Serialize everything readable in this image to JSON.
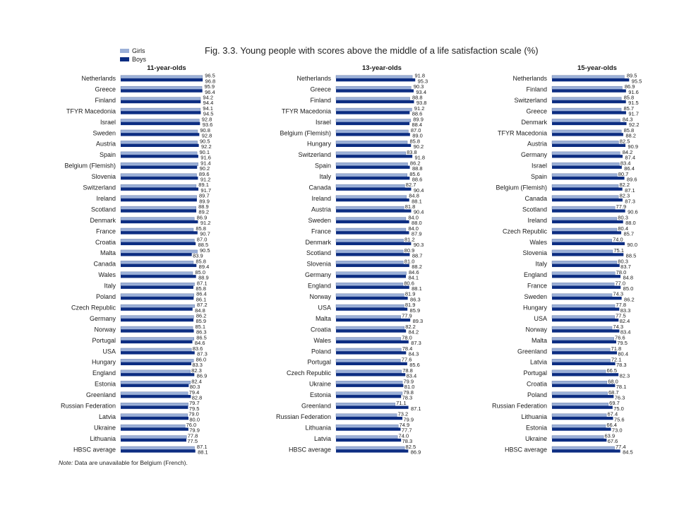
{
  "title": "Fig. 3.3. Young people with scores above the middle of a life satisfaction scale (%)",
  "legend": {
    "girls_label": "Girls",
    "boys_label": "Boys"
  },
  "note": {
    "prefix": "Note:",
    "text": "Data are unavailable for Belgium (French)."
  },
  "colors": {
    "girls": "#9bb0d8",
    "boys": "#0c2d82",
    "bar_outline": "#5a6e9c"
  },
  "chart_data": [
    {
      "type": "bar",
      "orientation": "horizontal",
      "title": "11-year-olds",
      "categories": [
        "Netherlands",
        "Greece",
        "Finland",
        "TFYR Macedonia",
        "Israel",
        "Sweden",
        "Austria",
        "Spain",
        "Belgium (Flemish)",
        "Slovenia",
        "Switzerland",
        "Ireland",
        "Scotland",
        "Denmark",
        "France",
        "Croatia",
        "Malta",
        "Canada",
        "Wales",
        "Italy",
        "Poland",
        "Czech Republic",
        "Germany",
        "Norway",
        "Portugal",
        "USA",
        "Hungary",
        "England",
        "Estonia",
        "Greenland",
        "Russian Federation",
        "Latvia",
        "Ukraine",
        "Lithuania",
        "HBSC average"
      ],
      "series": [
        {
          "name": "Girls",
          "values": [
            96.5,
            95.9,
            94.2,
            94.1,
            92.8,
            90.8,
            90.5,
            90.1,
            91.4,
            89.6,
            89.1,
            89.7,
            88.9,
            86.9,
            85.8,
            87.0,
            90.5,
            85.8,
            85.0,
            87.1,
            86.4,
            87.2,
            86.2,
            85.1,
            86.5,
            83.6,
            86.0,
            82.3,
            82.4,
            79.4,
            79.7,
            79.0,
            76.0,
            77.8,
            87.1
          ]
        },
        {
          "name": "Boys",
          "values": [
            96.8,
            96.4,
            94.4,
            94.5,
            93.6,
            92.8,
            92.2,
            91.6,
            90.2,
            91.2,
            91.7,
            89.9,
            89.2,
            91.2,
            90.7,
            88.5,
            83.9,
            89.4,
            88.9,
            85.8,
            86.1,
            84.8,
            85.9,
            86.3,
            84.6,
            87.3,
            83.3,
            86.9,
            80.3,
            82.8,
            79.5,
            80.0,
            79.9,
            77.5,
            88.1
          ]
        }
      ],
      "xlim": [
        0,
        100
      ]
    },
    {
      "type": "bar",
      "orientation": "horizontal",
      "title": "13-year-olds",
      "categories": [
        "Netherlands",
        "Greece",
        "Finland",
        "TFYR Macedonia",
        "Israel",
        "Belgium (Flemish)",
        "Hungary",
        "Switzerland",
        "Spain",
        "Italy",
        "Canada",
        "Ireland",
        "Austria",
        "Sweden",
        "France",
        "Denmark",
        "Scotland",
        "Slovenia",
        "Germany",
        "England",
        "Norway",
        "USA",
        "Malta",
        "Croatia",
        "Wales",
        "Poland",
        "Portugal",
        "Czech Republic",
        "Ukraine",
        "Estonia",
        "Greenland",
        "Russian Federation",
        "Lithuania",
        "Latvia",
        "HBSC average"
      ],
      "series": [
        {
          "name": "Girls",
          "values": [
            91.8,
            90.3,
            88.8,
            91.2,
            89.9,
            87.0,
            85.8,
            83.8,
            86.2,
            85.6,
            82.7,
            84.8,
            81.8,
            84.0,
            84.0,
            81.2,
            80.9,
            81.0,
            84.6,
            80.6,
            81.9,
            81.9,
            77.9,
            82.2,
            78.0,
            78.4,
            77.6,
            78.8,
            79.9,
            79.8,
            71.1,
            73.2,
            74.9,
            74.0,
            82.5
          ]
        },
        {
          "name": "Boys",
          "values": [
            95.3,
            93.4,
            93.8,
            88.6,
            88.4,
            89.0,
            90.2,
            91.8,
            88.8,
            88.6,
            90.4,
            88.1,
            90.4,
            88.0,
            87.9,
            90.3,
            88.7,
            88.2,
            84.1,
            88.1,
            86.3,
            85.9,
            89.3,
            84.2,
            87.3,
            84.3,
            85.6,
            83.4,
            81.0,
            78.3,
            87.1,
            79.9,
            77.7,
            78.3,
            86.9
          ]
        }
      ],
      "xlim": [
        0,
        100
      ]
    },
    {
      "type": "bar",
      "orientation": "horizontal",
      "title": "15-year-olds",
      "categories": [
        "Netherlands",
        "Finland",
        "Switzerland",
        "Greece",
        "Denmark",
        "TFYR Macedonia",
        "Austria",
        "Germany",
        "Israel",
        "Spain",
        "Belgium (Flemish)",
        "Canada",
        "Scotland",
        "Ireland",
        "Czech Republic",
        "Wales",
        "Slovenia",
        "Italy",
        "England",
        "France",
        "Sweden",
        "Hungary",
        "USA",
        "Norway",
        "Malta",
        "Greenland",
        "Latvia",
        "Portugal",
        "Croatia",
        "Poland",
        "Russian Federation",
        "Lithuania",
        "Estonia",
        "Ukraine",
        "HBSC average"
      ],
      "series": [
        {
          "name": "Girls",
          "values": [
            89.5,
            86.9,
            85.8,
            85.7,
            84.3,
            85.8,
            82.5,
            84.2,
            83.4,
            80.7,
            82.2,
            82.3,
            77.9,
            80.3,
            80.4,
            74.0,
            75.1,
            80.3,
            78.0,
            77.0,
            74.3,
            77.8,
            77.5,
            74.3,
            76.6,
            71.8,
            72.1,
            66.5,
            68.0,
            68.7,
            69.7,
            67.4,
            66.4,
            63.9,
            77.4
          ]
        },
        {
          "name": "Boys",
          "values": [
            95.5,
            91.6,
            91.5,
            91.7,
            92.2,
            88.2,
            90.9,
            87.4,
            86.4,
            89.6,
            87.1,
            87.3,
            90.6,
            88.0,
            85.7,
            90.0,
            88.5,
            83.7,
            84.8,
            85.0,
            86.2,
            83.3,
            82.4,
            83.4,
            79.5,
            80.4,
            78.3,
            82.3,
            78.1,
            76.3,
            75.0,
            75.6,
            73.0,
            67.6,
            84.5
          ]
        }
      ],
      "xlim": [
        0,
        100
      ]
    }
  ]
}
